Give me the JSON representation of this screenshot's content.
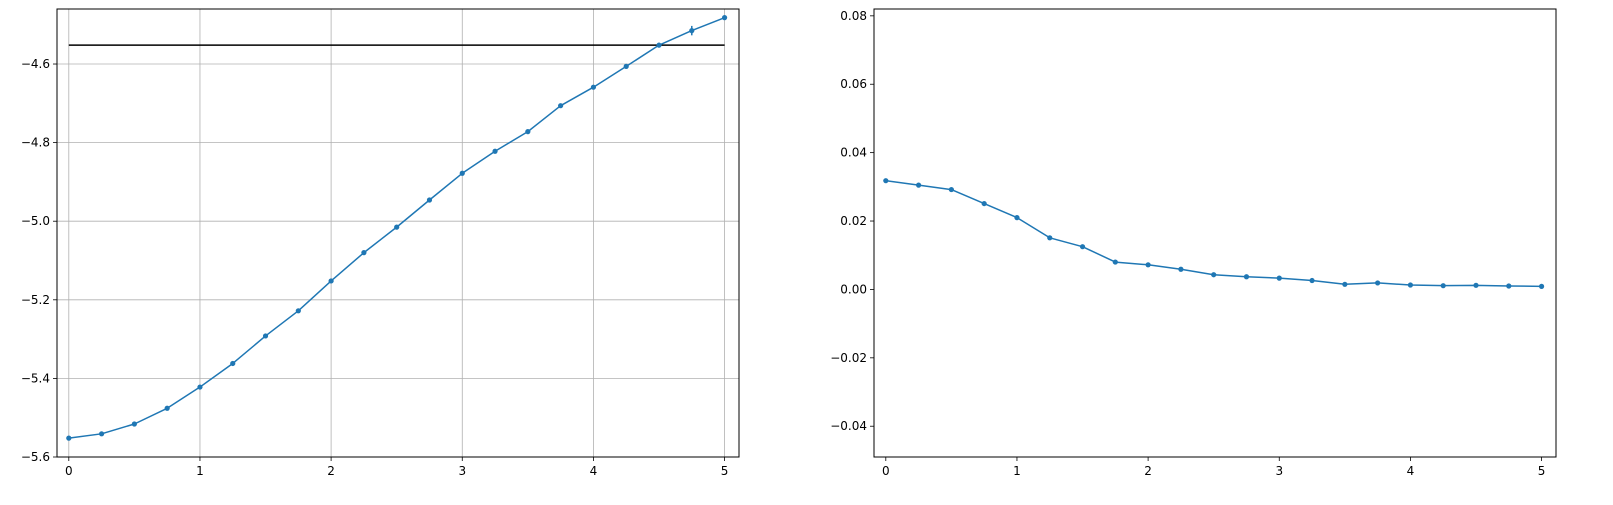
{
  "chart_data": [
    {
      "type": "line",
      "title": "",
      "xlabel": "",
      "ylabel": "",
      "xlim": [
        -0.09,
        5.11
      ],
      "ylim": [
        -5.6,
        -4.46
      ],
      "grid": true,
      "x_ticks": [
        0,
        1,
        2,
        3,
        4,
        5
      ],
      "x_tick_labels": [
        "0",
        "1",
        "2",
        "3",
        "4",
        "5"
      ],
      "y_ticks": [
        -5.6,
        -5.4,
        -5.2,
        -5.0,
        -4.8,
        -4.6
      ],
      "y_tick_labels": [
        "−5.6",
        "−5.4",
        "−5.2",
        "−5.0",
        "−4.8",
        "−4.6"
      ],
      "reference_line": {
        "y": -4.552,
        "x_range": [
          0,
          5
        ],
        "color": "#000000"
      },
      "series": [
        {
          "color": "#1f77b4",
          "marker": "dot",
          "x": [
            0,
            0.25,
            0.5,
            0.75,
            1,
            1.25,
            1.5,
            1.75,
            2,
            2.25,
            2.5,
            2.75,
            3,
            3.25,
            3.5,
            3.75,
            4,
            4.25,
            4.5,
            4.75,
            5
          ],
          "y": [
            -5.552,
            -5.541,
            -5.516,
            -5.476,
            -5.422,
            -5.362,
            -5.292,
            -5.228,
            -5.152,
            -5.08,
            -5.015,
            -4.946,
            -4.878,
            -4.822,
            -4.772,
            -4.706,
            -4.659,
            -4.606,
            -4.552,
            -4.515,
            -4.482
          ],
          "yerr": [
            0.003,
            0.003,
            0.003,
            0.003,
            0.003,
            0.003,
            0.003,
            0.003,
            0.003,
            0.003,
            0.003,
            0.003,
            0.003,
            0.003,
            0.003,
            0.003,
            0.003,
            0.003,
            0.004,
            0.012,
            0.005
          ]
        }
      ]
    },
    {
      "type": "line",
      "title": "",
      "xlabel": "",
      "ylabel": "",
      "xlim": [
        -0.09,
        5.11
      ],
      "ylim": [
        -0.049,
        0.082
      ],
      "grid": false,
      "x_ticks": [
        0,
        1,
        2,
        3,
        4,
        5
      ],
      "x_tick_labels": [
        "0",
        "1",
        "2",
        "3",
        "4",
        "5"
      ],
      "y_ticks": [
        -0.04,
        -0.02,
        0.0,
        0.02,
        0.04,
        0.06,
        0.08
      ],
      "y_tick_labels": [
        "−0.04",
        "−0.02",
        "0.00",
        "0.02",
        "0.04",
        "0.06",
        "0.08"
      ],
      "series": [
        {
          "color": "#1f77b4",
          "marker": "dot",
          "x": [
            0,
            0.25,
            0.5,
            0.75,
            1,
            1.25,
            1.5,
            1.75,
            2,
            2.25,
            2.5,
            2.75,
            3,
            3.25,
            3.5,
            3.75,
            4,
            4.25,
            4.5,
            4.75,
            5
          ],
          "y": [
            0.0318,
            0.0305,
            0.0292,
            0.0251,
            0.021,
            0.0151,
            0.0125,
            0.008,
            0.0072,
            0.0059,
            0.0043,
            0.0037,
            0.0033,
            0.0026,
            0.0015,
            0.0019,
            0.0013,
            0.0011,
            0.0012,
            0.001,
            0.0009
          ]
        }
      ]
    }
  ]
}
